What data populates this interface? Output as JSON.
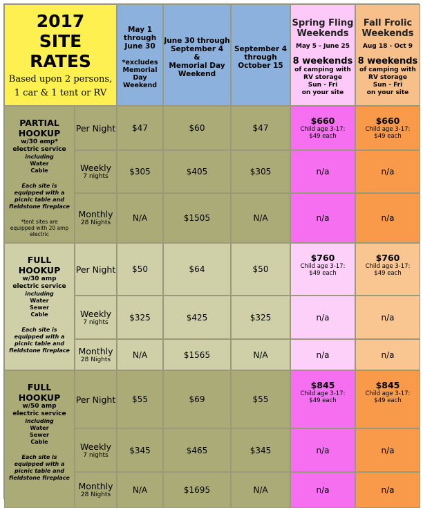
{
  "header": {
    "title_line1": "2017",
    "title_line2": "SITE",
    "title_line3": "RATES",
    "subtitle_line1": "Based upon 2 persons,",
    "subtitle_line2": "1 car & 1 tent or RV",
    "col1": {
      "l1": "May 1",
      "l2": "through",
      "l3": "June 30",
      "n1": "*excludes",
      "n2": "Memorial",
      "n3": "Day",
      "n4": "Weekend"
    },
    "col2": {
      "l1": "June 30 through",
      "l2": "September 4",
      "l3": "&",
      "l4": "Memorial Day",
      "l5": "Weekend"
    },
    "col3": {
      "l1": "September 4",
      "l2": "through",
      "l3": "October 15"
    },
    "spring": {
      "title1": "Spring Fling",
      "title2": "Weekends",
      "dates": "May 5 - June 25",
      "weekends": "8 weekends",
      "d1": "of camping with",
      "d2": "RV storage",
      "d3": "Sun - Fri",
      "d4": "on your site"
    },
    "fall": {
      "title1": "Fall Frolic",
      "title2": "Weekends",
      "dates": "Aug 18 - Oct 9",
      "weekends": "8 weekends",
      "d1": "of camping with",
      "d2": "RV storage",
      "d3": "Sun - Fri",
      "d4": "on your site"
    }
  },
  "groups": [
    {
      "title1": "PARTIAL",
      "title2": "HOOKUP",
      "service1": "w/30 amp*",
      "service2": "electric service",
      "including": "including",
      "items": [
        "Water",
        "Cable"
      ],
      "equip1": "Each site is",
      "equip2": "equipped with a",
      "equip3": "picnic table and",
      "equip4": "fieldstone fireplace",
      "note1": "*tent sites are",
      "note2": "equipped with 20 amp",
      "note3": "electric",
      "rows": [
        {
          "period": "Per Night",
          "sub": "",
          "c1": "$47",
          "c2": "$60",
          "c3": "$47",
          "spring_price": "$660",
          "spring_child1": "Child age 3-17:",
          "spring_child2": "$49 each",
          "fall_price": "$660",
          "fall_child1": "Child age 3-17:",
          "fall_child2": "$49 each"
        },
        {
          "period": "Weekly",
          "sub": "7 nights",
          "c1": "$305",
          "c2": "$405",
          "c3": "$305",
          "spring": "n/a",
          "fall": "n/a"
        },
        {
          "period": "Monthly",
          "sub": "28 Nights",
          "c1": "N/A",
          "c2": "$1505",
          "c3": "N/A",
          "spring": "n/a",
          "fall": "n/a"
        }
      ]
    },
    {
      "title1": "FULL",
      "title2": "HOOKUP",
      "service1": "w/30 amp",
      "service2": "electric service",
      "including": "including",
      "items": [
        "Water",
        "Sewer",
        "Cable"
      ],
      "equip1": "Each site is",
      "equip2": "equipped with a",
      "equip3": "picnic table and",
      "equip4": "fieldstone fireplace",
      "rows": [
        {
          "period": "Per Night",
          "sub": "",
          "c1": "$50",
          "c2": "$64",
          "c3": "$50",
          "spring_price": "$760",
          "spring_child1": "Child age 3-17:",
          "spring_child2": "$49 each",
          "fall_price": "$760",
          "fall_child1": "Child age 3-17:",
          "fall_child2": "$49 each"
        },
        {
          "period": "Weekly",
          "sub": "7 nights",
          "c1": "$325",
          "c2": "$425",
          "c3": "$325",
          "spring": "n/a",
          "fall": "n/a"
        },
        {
          "period": "Monthly",
          "sub": "28 Nights",
          "c1": "N/A",
          "c2": "$1565",
          "c3": "N/A",
          "spring": "n/a",
          "fall": "n/a"
        }
      ]
    },
    {
      "title1": "FULL",
      "title2": "HOOKUP",
      "service1": "w/50 amp",
      "service2": "electric service",
      "including": "including",
      "items": [
        "Water",
        "Sewer",
        "Cable"
      ],
      "equip1": "Each site is",
      "equip2": "equipped with a",
      "equip3": "picnic table and",
      "equip4": "fieldstone fireplace",
      "rows": [
        {
          "period": "Per Night",
          "sub": "",
          "c1": "$55",
          "c2": "$69",
          "c3": "$55",
          "spring_price": "$845",
          "spring_child1": "Child age 3-17:",
          "spring_child2": "$49 each",
          "fall_price": "$845",
          "fall_child1": "Child age 3-17:",
          "fall_child2": "$49 each"
        },
        {
          "period": "Weekly",
          "sub": "7 nights",
          "c1": "$345",
          "c2": "$465",
          "c3": "$345",
          "spring": "n/a",
          "fall": "n/a"
        },
        {
          "period": "Monthly",
          "sub": "28 Nights",
          "c1": "N/A",
          "c2": "$1695",
          "c3": "N/A",
          "spring": "n/a",
          "fall": "n/a"
        }
      ]
    }
  ],
  "colors": {
    "title_bg": "#fdf050",
    "season_bg": "#8cb1dd",
    "spring_bg": "#f56ff0",
    "fall_bg": "#f89a4a",
    "group_dark": "#aaab76",
    "group_light": "#cfd0a8"
  }
}
